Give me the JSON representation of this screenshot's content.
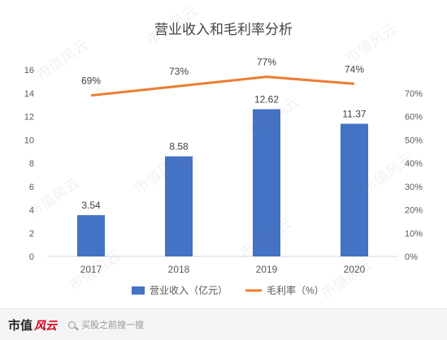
{
  "chart_data": {
    "type": "bar",
    "title": "营业收入和毛利率分析",
    "categories": [
      "2017",
      "2018",
      "2019",
      "2020"
    ],
    "series": [
      {
        "name": "营业收入（亿元）",
        "type": "bar",
        "axis": "left",
        "values": [
          3.54,
          8.58,
          12.62,
          11.37
        ],
        "labels": [
          "3.54",
          "8.58",
          "12.62",
          "11.37"
        ],
        "color": "#4472c4"
      },
      {
        "name": "毛利率（%）",
        "type": "line",
        "axis": "right",
        "values": [
          69,
          73,
          77,
          74
        ],
        "labels": [
          "69%",
          "73%",
          "77%",
          "74%"
        ],
        "color": "#ed7d31"
      }
    ],
    "y_left": {
      "min": 0,
      "max": 16,
      "ticks": [
        "0",
        "2",
        "4",
        "6",
        "8",
        "10",
        "12",
        "14",
        "16"
      ]
    },
    "y_right": {
      "min": 0,
      "max": 80,
      "ticks": [
        "0%",
        "10%",
        "20%",
        "30%",
        "40%",
        "50%",
        "60%",
        "70%"
      ]
    },
    "grid": false,
    "legend_position": "bottom"
  },
  "watermark": {
    "text": "市值风云"
  },
  "footer": {
    "brand_text": "市值",
    "brand_seal": "风云",
    "search_hint": "买股之前搜一搜"
  }
}
